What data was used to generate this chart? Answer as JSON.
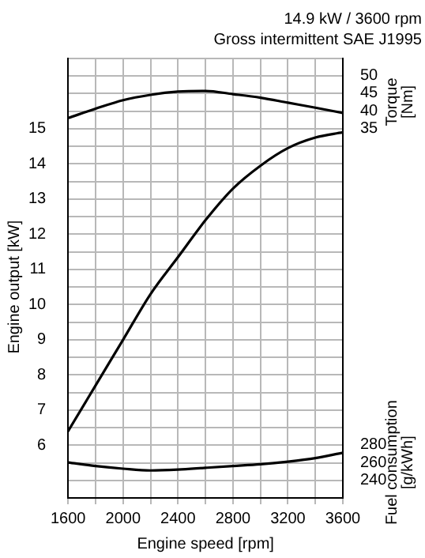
{
  "chart_data": {
    "type": "line",
    "title": "14.9 kW / 3600 rpm",
    "subtitle": "Gross intermittent SAE J1995",
    "xlabel": "Engine speed [rpm]",
    "ylabel": "Engine output [kW]",
    "y2label": "Torque [Nm]",
    "y3label": "Fuel consumption [g/kWh]",
    "x": [
      1600,
      1800,
      2000,
      2200,
      2400,
      2600,
      2800,
      3000,
      3200,
      3400,
      3600
    ],
    "series": [
      {
        "color": "#000000",
        "values": [
          6.4,
          7.7,
          9.0,
          10.3,
          11.35,
          12.4,
          13.3,
          13.95,
          14.45,
          14.75,
          14.9
        ]
      },
      {
        "color": "#000000",
        "axis": "y2",
        "values": [
          38.0,
          40.6,
          43.0,
          44.5,
          45.4,
          45.6,
          44.7,
          43.7,
          42.3,
          40.9,
          39.4
        ]
      },
      {
        "color": "#000000",
        "axis": "y3",
        "values": [
          260,
          256,
          253,
          251,
          252,
          254,
          256,
          258,
          261,
          265,
          271
        ]
      }
    ],
    "xlim": [
      1600,
      3600
    ],
    "xticks": [
      1600,
      {
        "value": 1800,
        "label": null
      },
      2000,
      {
        "value": 2200,
        "label": null
      },
      2400,
      {
        "value": 2600,
        "label": null
      },
      2800,
      {
        "value": 3000,
        "label": null
      },
      3200,
      {
        "value": 3400,
        "label": null
      },
      3600
    ],
    "ylim": [
      4.5,
      17
    ],
    "yticks": [
      {
        "value": 4.5,
        "label": null
      },
      {
        "value": 5,
        "label": null
      },
      {
        "value": 5.5,
        "label": null
      },
      6,
      {
        "value": 6.5,
        "label": null
      },
      7,
      {
        "value": 7.5,
        "label": null
      },
      8,
      {
        "value": 8.5,
        "label": null
      },
      9,
      {
        "value": 9.5,
        "label": null
      },
      10,
      {
        "value": 10.5,
        "label": null
      },
      11,
      {
        "value": 11.5,
        "label": null
      },
      12,
      {
        "value": 12.5,
        "label": null
      },
      13,
      {
        "value": 13.5,
        "label": null
      },
      14,
      {
        "value": 14.5,
        "label": null
      },
      15,
      {
        "value": 15.5,
        "label": null
      },
      {
        "value": 16,
        "label": null
      },
      {
        "value": 16.5,
        "label": null
      },
      {
        "value": 17,
        "label": null
      }
    ],
    "y2lim": [
      -68.6,
      54.7
    ],
    "y2ticks": [
      35,
      40,
      45,
      50
    ],
    "y3lim": [
      220,
      716
    ],
    "y3ticks": [
      240,
      260,
      280
    ],
    "grid": true,
    "marker": "none",
    "line_style": "solid",
    "legend": false
  }
}
